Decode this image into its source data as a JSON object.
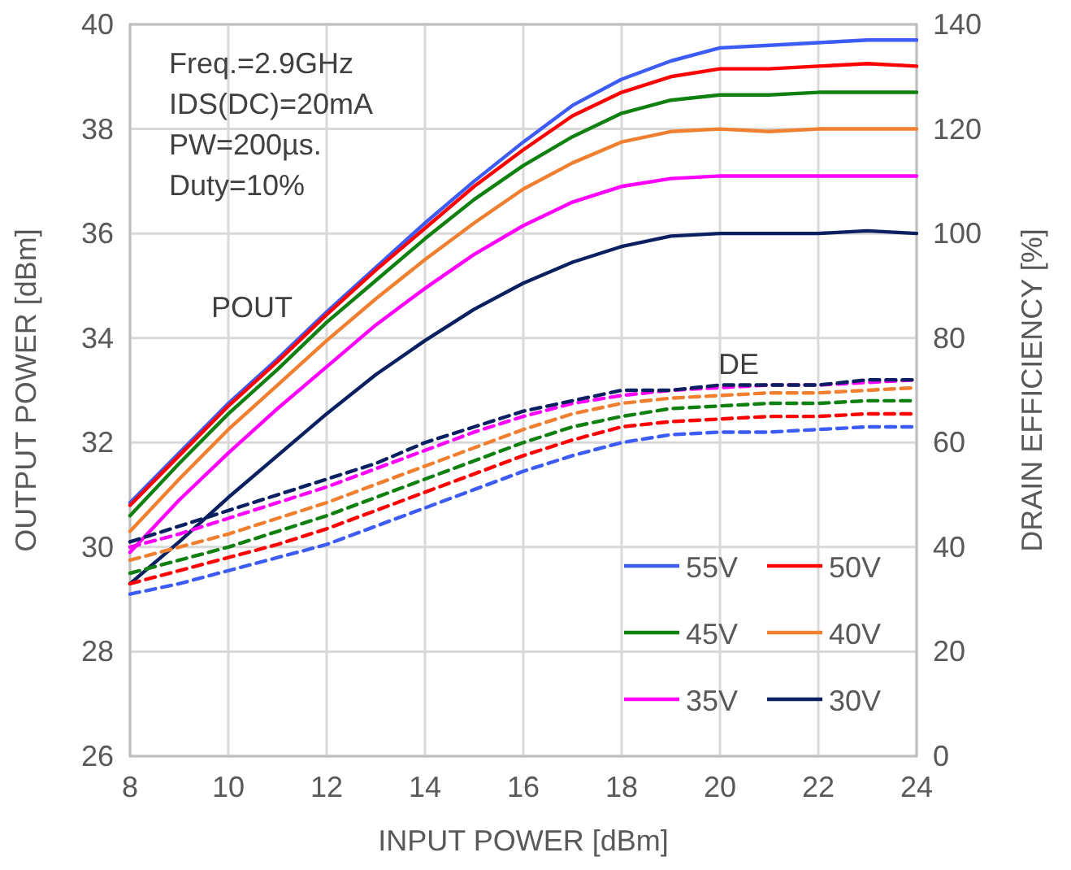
{
  "chart_data": {
    "type": "line",
    "xlabel": "INPUT POWER [dBm]",
    "ylabel": "OUTPUT POWER [dBm]",
    "y2label": "DRAIN EFFICIENCY [%]",
    "x": [
      8,
      9,
      10,
      11,
      12,
      13,
      14,
      15,
      16,
      17,
      18,
      19,
      20,
      21,
      22,
      23,
      24
    ],
    "xlim": [
      8,
      24
    ],
    "xticks": [
      8,
      10,
      12,
      14,
      16,
      18,
      20,
      22,
      24
    ],
    "ylim": [
      26,
      40
    ],
    "yticks": [
      26,
      28,
      30,
      32,
      34,
      36,
      38,
      40
    ],
    "y2lim": [
      0,
      140
    ],
    "y2ticks": [
      0,
      20,
      40,
      60,
      80,
      100,
      120,
      140
    ],
    "grid": true,
    "legend": "bottom right",
    "annotations": [
      "Freq.=2.9GHz",
      "IDS(DC)=20mA",
      "PW=200µs.",
      "Duty=10%",
      "POUT",
      "DE"
    ],
    "series": [
      {
        "name": "55V",
        "color": "#3d5cf5",
        "line_style": "solid",
        "values": [
          30.85,
          31.8,
          32.75,
          33.6,
          34.5,
          35.35,
          36.2,
          37.0,
          37.75,
          38.45,
          38.95,
          39.3,
          39.55,
          39.6,
          39.65,
          39.7,
          39.7
        ]
      },
      {
        "name": "50V",
        "color": "#ff0000",
        "line_style": "solid",
        "values": [
          30.8,
          31.75,
          32.7,
          33.55,
          34.45,
          35.3,
          36.1,
          36.9,
          37.6,
          38.25,
          38.7,
          39.0,
          39.15,
          39.15,
          39.2,
          39.25,
          39.2
        ]
      },
      {
        "name": "45V",
        "color": "#108010",
        "line_style": "solid",
        "values": [
          30.6,
          31.6,
          32.55,
          33.4,
          34.3,
          35.1,
          35.9,
          36.65,
          37.3,
          37.85,
          38.3,
          38.55,
          38.65,
          38.65,
          38.7,
          38.7,
          38.7
        ]
      },
      {
        "name": "40V",
        "color": "#f08030",
        "line_style": "solid",
        "values": [
          30.3,
          31.3,
          32.25,
          33.1,
          33.95,
          34.75,
          35.5,
          36.2,
          36.85,
          37.35,
          37.75,
          37.95,
          38.0,
          37.95,
          38.0,
          38.0,
          38.0
        ]
      },
      {
        "name": "35V",
        "color": "#ff00ff",
        "line_style": "solid",
        "values": [
          29.9,
          30.9,
          31.8,
          32.65,
          33.45,
          34.25,
          34.95,
          35.6,
          36.15,
          36.6,
          36.9,
          37.05,
          37.1,
          37.1,
          37.1,
          37.1,
          37.1
        ]
      },
      {
        "name": "30V",
        "color": "#0a2060",
        "line_style": "solid",
        "values": [
          29.3,
          30.1,
          30.95,
          31.75,
          32.55,
          33.3,
          33.95,
          34.55,
          35.05,
          35.45,
          35.75,
          35.95,
          36.0,
          36.0,
          36.0,
          36.05,
          36.0
        ]
      },
      {
        "color": "#3d5cf5",
        "axis": "y2",
        "line_style": "dashed",
        "values": [
          31,
          33,
          35.5,
          38,
          40.5,
          44,
          47.5,
          51,
          54.5,
          57.5,
          60,
          61.5,
          62,
          62,
          62.5,
          63,
          63
        ]
      },
      {
        "color": "#ff0000",
        "axis": "y2",
        "line_style": "dashed",
        "values": [
          33,
          35.5,
          38,
          40.5,
          43.5,
          47,
          50.5,
          54,
          57.5,
          60.5,
          63,
          64,
          64.5,
          65,
          65,
          65.5,
          65.5
        ]
      },
      {
        "color": "#108010",
        "axis": "y2",
        "line_style": "dashed",
        "values": [
          35,
          37.5,
          40,
          43,
          46,
          49.5,
          53,
          56.5,
          60,
          63,
          65,
          66.5,
          67,
          67.5,
          67.5,
          68,
          68
        ]
      },
      {
        "color": "#f08030",
        "axis": "y2",
        "line_style": "dashed",
        "values": [
          37.5,
          40,
          42.5,
          45.5,
          48.5,
          52,
          55.5,
          59,
          62.5,
          65.5,
          67.5,
          68.5,
          69,
          69.5,
          69.5,
          70,
          70.5
        ]
      },
      {
        "color": "#ff00ff",
        "axis": "y2",
        "line_style": "dashed",
        "values": [
          40,
          42.5,
          45.5,
          48.5,
          51.5,
          55,
          58.5,
          62,
          65,
          67.5,
          69,
          70,
          70.5,
          71,
          71,
          71.5,
          72
        ]
      },
      {
        "color": "#0a2060",
        "axis": "y2",
        "line_style": "dashed",
        "values": [
          41,
          44,
          47,
          50,
          53,
          56,
          60,
          63,
          66,
          68,
          70,
          70,
          71,
          71,
          71,
          72,
          72
        ]
      }
    ]
  }
}
